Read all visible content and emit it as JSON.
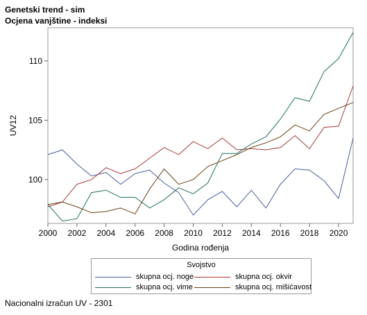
{
  "title": "Genetski trend - sim",
  "subtitle": "Ocjena vanjštine - indeksi",
  "footnote": "Nacionalni izračun UV - 2301",
  "chart_data": {
    "type": "line",
    "xlabel": "Godina rođenja",
    "ylabel": "UV12",
    "x": [
      2000,
      2001,
      2002,
      2003,
      2004,
      2005,
      2006,
      2007,
      2008,
      2009,
      2010,
      2011,
      2012,
      2013,
      2014,
      2015,
      2016,
      2017,
      2018,
      2019,
      2020,
      2021
    ],
    "xlim": [
      2000,
      2021
    ],
    "ylim": [
      96.3,
      112.8
    ],
    "xticks": [
      "2000",
      "2002",
      "2004",
      "2006",
      "2008",
      "2010",
      "2012",
      "2014",
      "2016",
      "2018",
      "2020"
    ],
    "yticks": [
      "100",
      "105",
      "110"
    ],
    "grid": false,
    "legend_title": "Svojstvo",
    "legend_position": "bottom",
    "series": [
      {
        "name": "skupna ocj. noge",
        "color": "#4a5c9c",
        "values": [
          102.1,
          102.5,
          101.3,
          100.3,
          100.6,
          99.6,
          100.5,
          100.8,
          99.7,
          98.9,
          97.0,
          98.3,
          99.0,
          97.7,
          99.1,
          97.6,
          99.6,
          100.9,
          100.8,
          99.9,
          98.4,
          103.5
        ]
      },
      {
        "name": "skupna ocj. okvir",
        "color": "#a23a3a",
        "values": [
          97.7,
          98.1,
          99.6,
          100.0,
          101.0,
          100.5,
          100.9,
          101.8,
          102.7,
          102.1,
          103.2,
          102.6,
          103.5,
          102.5,
          102.6,
          102.5,
          102.7,
          103.7,
          102.6,
          104.4,
          104.5,
          107.9
        ]
      },
      {
        "name": "skupna ocj. vime",
        "color": "#1f6e5e",
        "values": [
          97.9,
          96.5,
          96.7,
          98.9,
          99.1,
          98.5,
          98.5,
          97.6,
          98.3,
          99.3,
          98.8,
          99.7,
          102.2,
          102.2,
          103.0,
          103.6,
          105.1,
          106.9,
          106.6,
          109.1,
          110.2,
          112.4
        ]
      },
      {
        "name": "skupna ocj. mišićavost",
        "color": "#6b3e12",
        "values": [
          97.9,
          98.1,
          97.7,
          97.2,
          97.3,
          97.6,
          97.1,
          99.2,
          100.9,
          99.6,
          100.0,
          101.1,
          101.6,
          102.1,
          102.7,
          103.1,
          103.6,
          104.6,
          104.1,
          105.5,
          106.0,
          106.5
        ]
      }
    ]
  }
}
